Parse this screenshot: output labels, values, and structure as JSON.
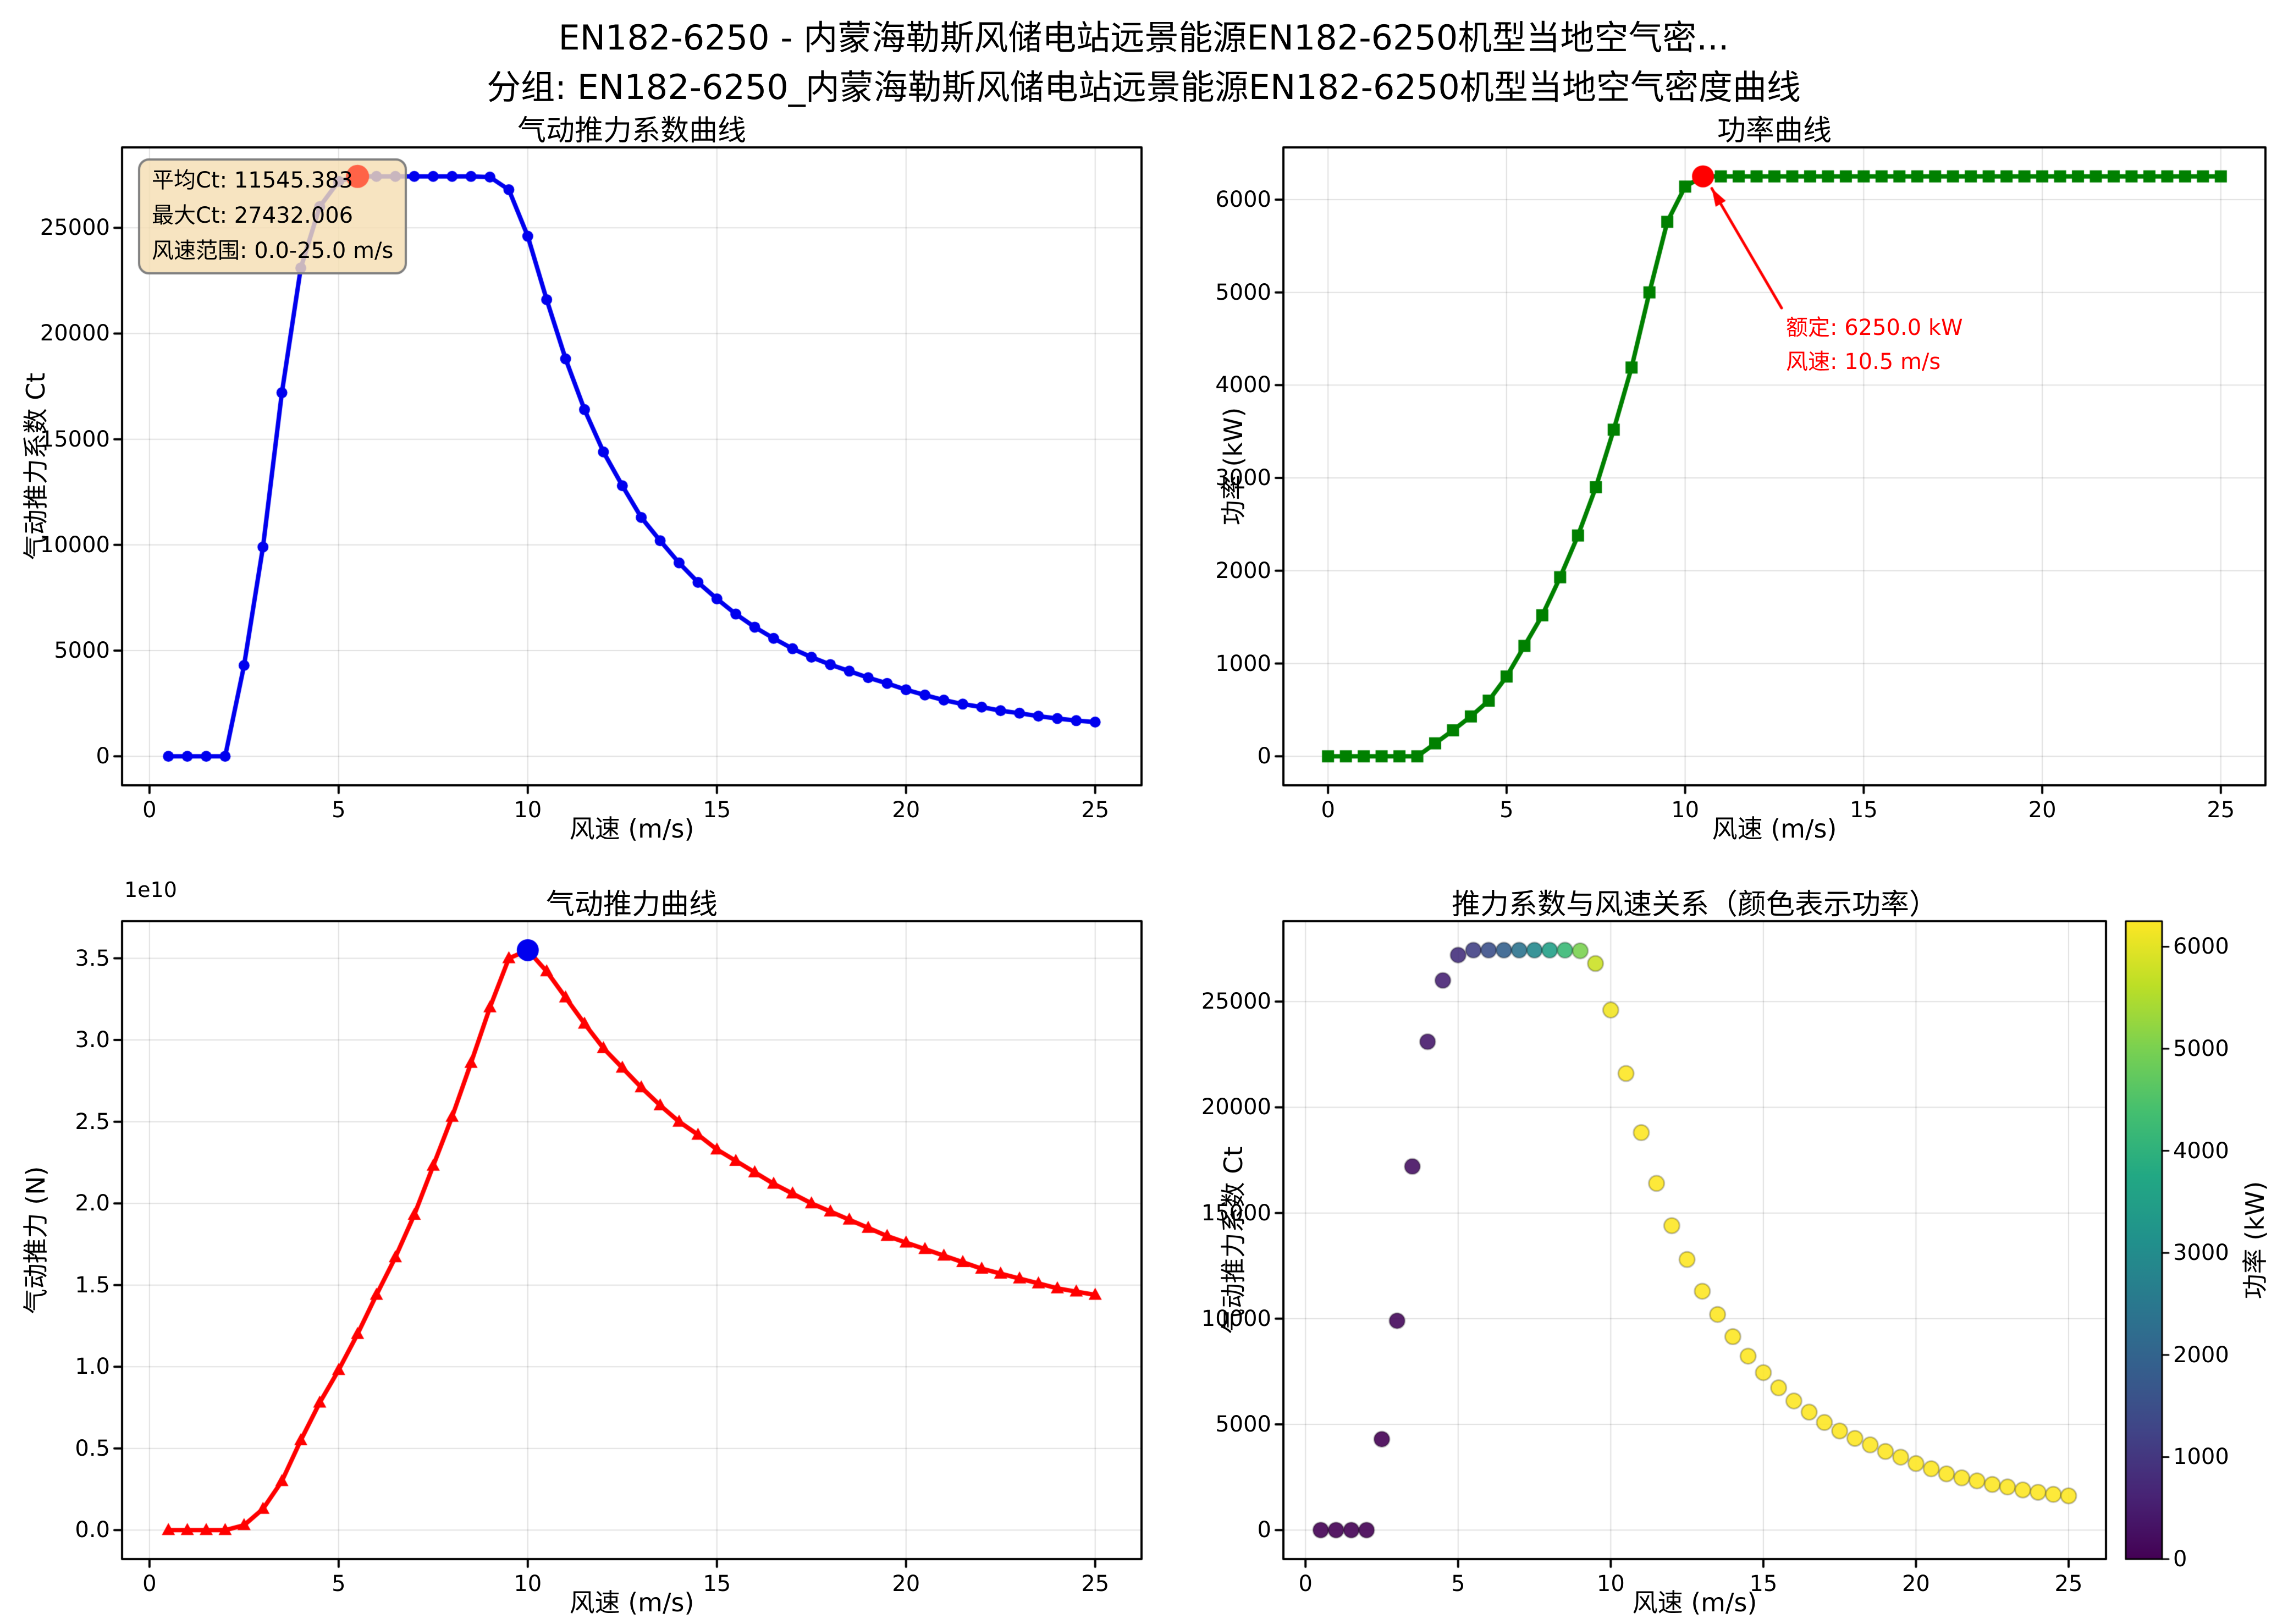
{
  "figure": {
    "suptitle_line1": "EN182-6250 - 内蒙海勒斯风储电站远景能源EN182-6250机型当地空气密...",
    "suptitle_line2": "分组: EN182-6250_内蒙海勒斯风储电站远景能源EN182-6250机型当地空气密度曲线",
    "background": "#ffffff",
    "grid_color": "rgba(0,0,0,0.12)"
  },
  "chart_data": {
    "ct_curve": {
      "type": "line",
      "title": "气动推力系数曲线",
      "xlabel": "风速 (m/s)",
      "ylabel": "气动推力系数 Ct",
      "line_color": "#0000EE",
      "marker": "circle",
      "x": [
        0.5,
        1,
        1.5,
        2,
        2.5,
        3,
        3.5,
        4,
        4.5,
        5,
        5.5,
        6,
        6.5,
        7,
        7.5,
        8,
        8.5,
        9,
        9.5,
        10,
        10.5,
        11,
        11.5,
        12,
        12.5,
        13,
        13.5,
        14,
        14.5,
        15,
        15.5,
        16,
        16.5,
        17,
        17.5,
        18,
        18.5,
        19,
        19.5,
        20,
        20.5,
        21,
        21.5,
        22,
        22.5,
        23,
        23.5,
        24,
        24.5,
        25
      ],
      "values": [
        0,
        0,
        0,
        0,
        4300,
        9900,
        17200,
        23100,
        26000,
        27200,
        27432,
        27432,
        27432,
        27432,
        27432,
        27432,
        27430,
        27400,
        26800,
        24600,
        21600,
        18800,
        16400,
        14400,
        12800,
        11300,
        10200,
        9150,
        8230,
        7450,
        6730,
        6110,
        5580,
        5090,
        4690,
        4340,
        4030,
        3720,
        3450,
        3150,
        2900,
        2660,
        2470,
        2330,
        2160,
        2040,
        1900,
        1790,
        1690,
        1620
      ],
      "xticks": [
        "0",
        "5",
        "10",
        "15",
        "20",
        "25"
      ],
      "yticks": [
        "0",
        "5000",
        "10000",
        "15000",
        "20000",
        "25000"
      ],
      "max_point": {
        "x": 5.5,
        "y": 27432,
        "color": "#FF6347"
      },
      "stats_box": {
        "lines": [
          "平均Ct: 11545.383",
          "最大Ct: 27432.006",
          "风速范围: 0.0-25.0 m/s"
        ],
        "bg": "#F5DEB3",
        "border": "#808080"
      }
    },
    "power_curve": {
      "type": "line",
      "title": "功率曲线",
      "xlabel": "风速 (m/s)",
      "ylabel": "功率 (kW)",
      "line_color": "#008000",
      "marker": "square",
      "x": [
        0,
        0.5,
        1,
        1.5,
        2,
        2.5,
        3,
        3.5,
        4,
        4.5,
        5,
        5.5,
        6,
        6.5,
        7,
        7.5,
        8,
        8.5,
        9,
        9.5,
        10,
        10.5,
        11,
        11.5,
        12,
        12.5,
        13,
        13.5,
        14,
        14.5,
        15,
        15.5,
        16,
        16.5,
        17,
        17.5,
        18,
        18.5,
        19,
        19.5,
        20,
        20.5,
        21,
        21.5,
        22,
        22.5,
        23,
        23.5,
        24,
        24.5,
        25
      ],
      "values": [
        0,
        0,
        0,
        0,
        0,
        0,
        140,
        280,
        430,
        600,
        860,
        1190,
        1520,
        1930,
        2380,
        2900,
        3520,
        4190,
        5000,
        5760,
        6140,
        6250,
        6250,
        6250,
        6250,
        6250,
        6250,
        6250,
        6250,
        6250,
        6250,
        6250,
        6250,
        6250,
        6250,
        6250,
        6250,
        6250,
        6250,
        6250,
        6250,
        6250,
        6250,
        6250,
        6250,
        6250,
        6250,
        6250,
        6250,
        6250,
        6250
      ],
      "xticks": [
        "0",
        "5",
        "10",
        "15",
        "20",
        "25"
      ],
      "yticks": [
        "0",
        "1000",
        "2000",
        "3000",
        "4000",
        "5000",
        "6000"
      ],
      "rated_point": {
        "x": 10.5,
        "y": 6250,
        "color": "#FF0000"
      },
      "annotation": {
        "lines": [
          "额定: 6250.0 kW",
          "风速: 10.5 m/s"
        ],
        "color": "#FF0000"
      }
    },
    "thrust_curve": {
      "type": "line",
      "title": "气动推力曲线",
      "xlabel": "风速 (m/s)",
      "ylabel": "气动推力 (N)",
      "offset_label": "1e10",
      "line_color": "#FF0000",
      "marker": "triangle",
      "x": [
        0.5,
        1,
        1.5,
        2,
        2.5,
        3,
        3.5,
        4,
        4.5,
        5,
        5.5,
        6,
        6.5,
        7,
        7.5,
        8,
        8.5,
        9,
        9.5,
        10,
        10.5,
        11,
        11.5,
        12,
        12.5,
        13,
        13.5,
        14,
        14.5,
        15,
        15.5,
        16,
        16.5,
        17,
        17.5,
        18,
        18.5,
        19,
        19.5,
        20,
        20.5,
        21,
        21.5,
        22,
        22.5,
        23,
        23.5,
        24,
        24.5,
        25
      ],
      "values": [
        0,
        0,
        0,
        0,
        0.03,
        0.13,
        0.3,
        0.55,
        0.78,
        0.98,
        1.2,
        1.44,
        1.67,
        1.93,
        2.23,
        2.53,
        2.86,
        3.2,
        3.5,
        3.55,
        3.42,
        3.26,
        3.1,
        2.95,
        2.83,
        2.71,
        2.6,
        2.5,
        2.42,
        2.33,
        2.26,
        2.19,
        2.12,
        2.06,
        2.0,
        1.95,
        1.9,
        1.85,
        1.8,
        1.76,
        1.72,
        1.68,
        1.64,
        1.6,
        1.57,
        1.54,
        1.51,
        1.48,
        1.46,
        1.44
      ],
      "xticks": [
        "0",
        "5",
        "10",
        "15",
        "20",
        "25"
      ],
      "yticks": [
        "0.0",
        "0.5",
        "1.0",
        "1.5",
        "2.0",
        "2.5",
        "3.0",
        "3.5"
      ],
      "peak_point": {
        "x": 10,
        "y": 3.55,
        "color": "#0000EE"
      }
    },
    "ct_power_scatter": {
      "type": "scatter",
      "title": "推力系数与风速关系（颜色表示功率）",
      "xlabel": "风速 (m/s)",
      "ylabel": "气动推力系数 Ct",
      "x": [
        0.5,
        1,
        1.5,
        2,
        2.5,
        3,
        3.5,
        4,
        4.5,
        5,
        5.5,
        6,
        6.5,
        7,
        7.5,
        8,
        8.5,
        9,
        9.5,
        10,
        10.5,
        11,
        11.5,
        12,
        12.5,
        13,
        13.5,
        14,
        14.5,
        15,
        15.5,
        16,
        16.5,
        17,
        17.5,
        18,
        18.5,
        19,
        19.5,
        20,
        20.5,
        21,
        21.5,
        22,
        22.5,
        23,
        23.5,
        24,
        24.5,
        25
      ],
      "values": [
        0,
        0,
        0,
        0,
        4300,
        9900,
        17200,
        23100,
        26000,
        27200,
        27432,
        27432,
        27432,
        27432,
        27432,
        27432,
        27430,
        27400,
        26800,
        24600,
        21600,
        18800,
        16400,
        14400,
        12800,
        11300,
        10200,
        9150,
        8230,
        7450,
        6730,
        6110,
        5580,
        5090,
        4690,
        4340,
        4030,
        3720,
        3450,
        3150,
        2900,
        2660,
        2470,
        2330,
        2160,
        2040,
        1900,
        1790,
        1690,
        1620
      ],
      "color_values": [
        0,
        0,
        0,
        0,
        0,
        140,
        280,
        430,
        600,
        860,
        1190,
        1520,
        1930,
        2380,
        2900,
        3520,
        4190,
        5000,
        5760,
        6140,
        6250,
        6250,
        6250,
        6250,
        6250,
        6250,
        6250,
        6250,
        6250,
        6250,
        6250,
        6250,
        6250,
        6250,
        6250,
        6250,
        6250,
        6250,
        6250,
        6250,
        6250,
        6250,
        6250,
        6250,
        6250,
        6250,
        6250,
        6250,
        6250,
        6250
      ],
      "xticks": [
        "0",
        "5",
        "10",
        "15",
        "20",
        "25"
      ],
      "yticks": [
        "0",
        "5000",
        "10000",
        "15000",
        "20000",
        "25000"
      ],
      "colorbar": {
        "label": "功率 (kW)",
        "ticks": [
          "0",
          "1000",
          "2000",
          "3000",
          "4000",
          "5000",
          "6000"
        ],
        "vmin": 0,
        "vmax": 6250,
        "colormap": "viridis"
      }
    }
  }
}
